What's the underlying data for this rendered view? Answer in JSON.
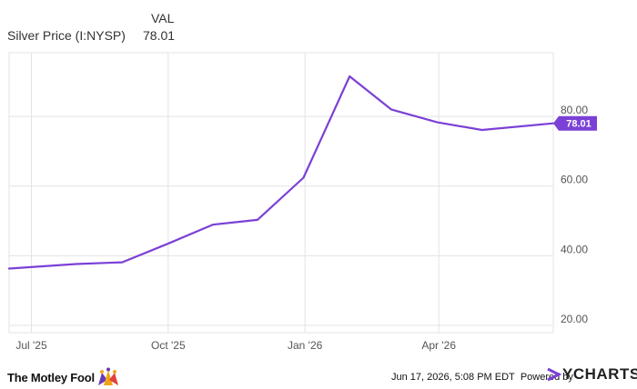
{
  "legend": {
    "column_header": "VAL",
    "series_name": "Silver Price (I:NYSP)",
    "series_value": "78.01"
  },
  "chart_data": {
    "type": "line",
    "series": [
      {
        "name": "Silver Price (I:NYSP)",
        "color": "#7b40d6",
        "points": [
          {
            "x": "2025-06-16",
            "y": 36.3
          },
          {
            "x": "2025-07-31",
            "y": 37.6
          },
          {
            "x": "2025-08-31",
            "y": 38.1
          },
          {
            "x": "2025-09-30",
            "y": 43.3
          },
          {
            "x": "2025-10-31",
            "y": 48.9
          },
          {
            "x": "2025-11-30",
            "y": 50.3
          },
          {
            "x": "2025-12-31",
            "y": 62.4
          },
          {
            "x": "2026-01-31",
            "y": 91.5
          },
          {
            "x": "2026-02-28",
            "y": 82.0
          },
          {
            "x": "2026-03-31",
            "y": 78.3
          },
          {
            "x": "2026-04-30",
            "y": 76.1
          },
          {
            "x": "2026-06-17",
            "y": 78.01
          }
        ]
      }
    ],
    "x_ticks": [
      {
        "date": "2025-07-01",
        "label": "Jul '25"
      },
      {
        "date": "2025-10-01",
        "label": "Oct '25"
      },
      {
        "date": "2026-01-01",
        "label": "Jan '26"
      },
      {
        "date": "2026-04-01",
        "label": "Apr '26"
      }
    ],
    "xlim": [
      "2025-06-16",
      "2026-06-17"
    ],
    "y_ticks": [
      20,
      40,
      60,
      80
    ],
    "y_tick_labels": [
      "20.00",
      "40.00",
      "60.00",
      "80.00"
    ],
    "ylim": [
      17.9,
      98.3
    ],
    "y_axis_side": "right",
    "grid": true,
    "last_value_label": "78.01",
    "xlabel": "",
    "ylabel": ""
  },
  "footer": {
    "brand": "The Motley Fool",
    "timestamp": "Jun 17, 2026, 5:08 PM EDT",
    "powered_by": "Powered by",
    "ycharts": "YCHARTS"
  },
  "colors": {
    "line": "#7b40d6",
    "grid": "#e3e3e3",
    "axis_text": "#555555",
    "badge_text": "#ffffff"
  }
}
